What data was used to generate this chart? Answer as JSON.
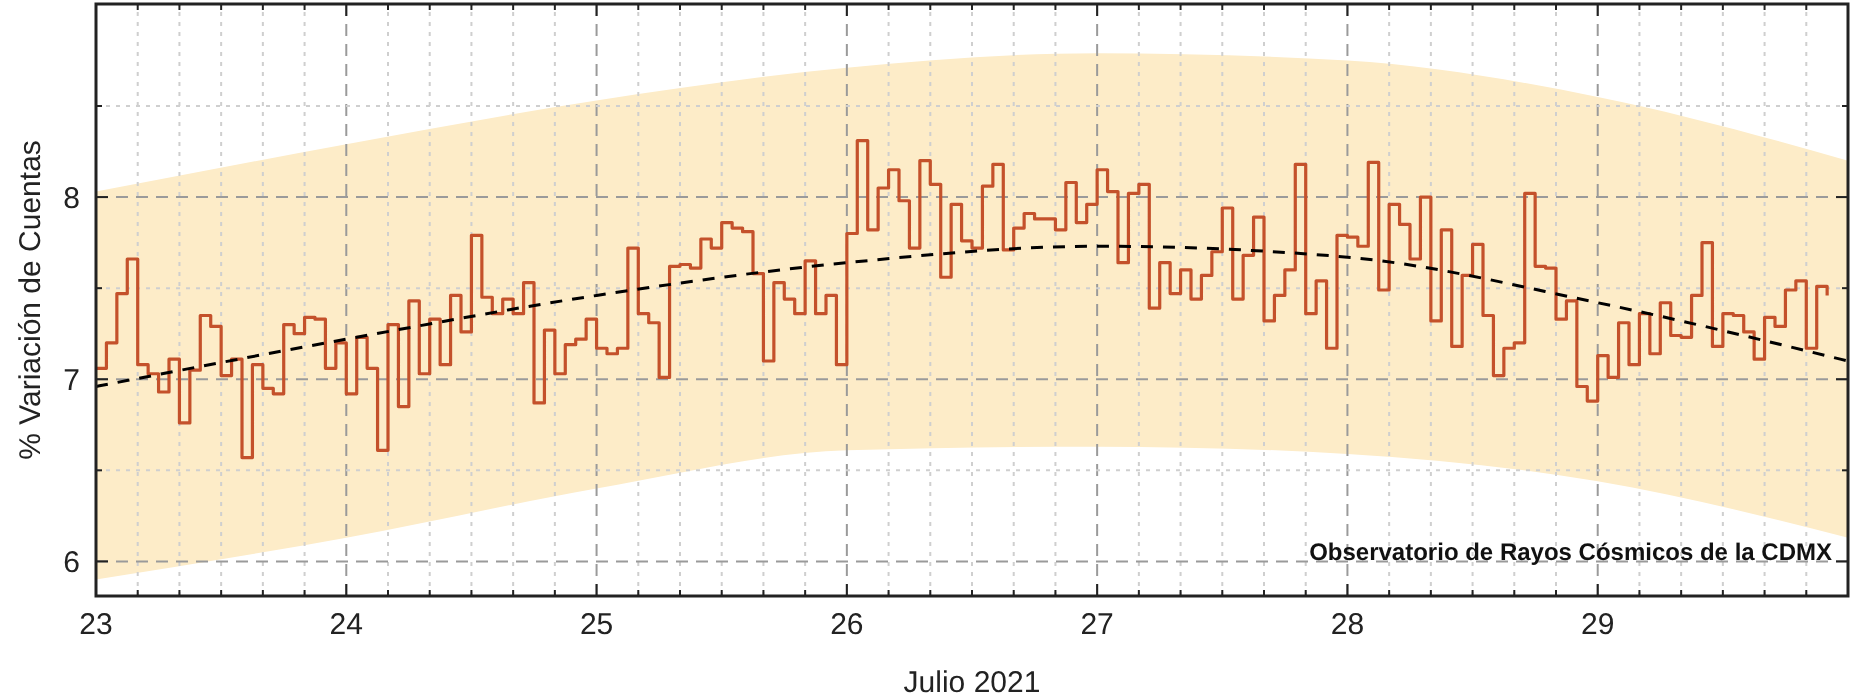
{
  "chart_data": {
    "type": "step",
    "xlabel": "Julio 2021",
    "ylabel": "% Variación de Cuentas",
    "annotations": [
      "Observatorio de Rayos Cósmicos de la CDMX"
    ],
    "xlim": [
      "2021-07-23",
      "2021-07-30"
    ],
    "ylim": [
      5.81,
      9.06
    ],
    "xticks": [
      {
        "value": "2021-07-23",
        "label": "23"
      },
      {
        "value": "2021-07-23T04:00",
        "label": null
      },
      {
        "value": "2021-07-23T08:00",
        "label": null
      },
      {
        "value": "2021-07-23T12:00",
        "label": null
      },
      {
        "value": "2021-07-23T16:00",
        "label": null
      },
      {
        "value": "2021-07-23T20:00",
        "label": null
      },
      {
        "value": "2021-07-24",
        "label": "24"
      },
      {
        "value": "2021-07-24T04:00",
        "label": null
      },
      {
        "value": "2021-07-24T08:00",
        "label": null
      },
      {
        "value": "2021-07-24T12:00",
        "label": null
      },
      {
        "value": "2021-07-24T16:00",
        "label": null
      },
      {
        "value": "2021-07-24T20:00",
        "label": null
      },
      {
        "value": "2021-07-25",
        "label": "25"
      },
      {
        "value": "2021-07-25T04:00",
        "label": null
      },
      {
        "value": "2021-07-25T08:00",
        "label": null
      },
      {
        "value": "2021-07-25T12:00",
        "label": null
      },
      {
        "value": "2021-07-25T16:00",
        "label": null
      },
      {
        "value": "2021-07-25T20:00",
        "label": null
      },
      {
        "value": "2021-07-26",
        "label": "26"
      },
      {
        "value": "2021-07-26T04:00",
        "label": null
      },
      {
        "value": "2021-07-26T08:00",
        "label": null
      },
      {
        "value": "2021-07-26T12:00",
        "label": null
      },
      {
        "value": "2021-07-26T16:00",
        "label": null
      },
      {
        "value": "2021-07-26T20:00",
        "label": null
      },
      {
        "value": "2021-07-27",
        "label": "27"
      },
      {
        "value": "2021-07-27T04:00",
        "label": null
      },
      {
        "value": "2021-07-27T08:00",
        "label": null
      },
      {
        "value": "2021-07-27T12:00",
        "label": null
      },
      {
        "value": "2021-07-27T16:00",
        "label": null
      },
      {
        "value": "2021-07-27T20:00",
        "label": null
      },
      {
        "value": "2021-07-28",
        "label": "28"
      },
      {
        "value": "2021-07-28T04:00",
        "label": null
      },
      {
        "value": "2021-07-28T08:00",
        "label": null
      },
      {
        "value": "2021-07-28T12:00",
        "label": null
      },
      {
        "value": "2021-07-28T16:00",
        "label": null
      },
      {
        "value": "2021-07-28T20:00",
        "label": null
      },
      {
        "value": "2021-07-29",
        "label": "29"
      },
      {
        "value": "2021-07-29T04:00",
        "label": null
      },
      {
        "value": "2021-07-29T08:00",
        "label": null
      },
      {
        "value": "2021-07-29T12:00",
        "label": null
      },
      {
        "value": "2021-07-29T16:00",
        "label": null
      },
      {
        "value": "2021-07-29T20:00",
        "label": null
      }
    ],
    "yticks": [
      6,
      {
        "value": 6.5,
        "label": null
      },
      7,
      {
        "value": 7.5,
        "label": null
      },
      8,
      {
        "value": 8.5,
        "label": null
      }
    ],
    "grid": true,
    "series": [
      {
        "color": "#c4512b",
        "x": [
          "2021-07-23T00:00",
          "2021-07-23T01:00",
          "2021-07-23T02:00",
          "2021-07-23T03:00",
          "2021-07-23T04:00",
          "2021-07-23T05:00",
          "2021-07-23T06:00",
          "2021-07-23T07:00",
          "2021-07-23T08:00",
          "2021-07-23T09:00",
          "2021-07-23T10:00",
          "2021-07-23T11:00",
          "2021-07-23T12:00",
          "2021-07-23T13:00",
          "2021-07-23T14:00",
          "2021-07-23T15:00",
          "2021-07-23T16:00",
          "2021-07-23T17:00",
          "2021-07-23T18:00",
          "2021-07-23T19:00",
          "2021-07-23T20:00",
          "2021-07-23T21:00",
          "2021-07-23T22:00",
          "2021-07-23T23:00",
          "2021-07-24T00:00",
          "2021-07-24T01:00",
          "2021-07-24T02:00",
          "2021-07-24T03:00",
          "2021-07-24T04:00",
          "2021-07-24T05:00",
          "2021-07-24T06:00",
          "2021-07-24T07:00",
          "2021-07-24T08:00",
          "2021-07-24T09:00",
          "2021-07-24T10:00",
          "2021-07-24T11:00",
          "2021-07-24T12:00",
          "2021-07-24T13:00",
          "2021-07-24T14:00",
          "2021-07-24T15:00",
          "2021-07-24T16:00",
          "2021-07-24T17:00",
          "2021-07-24T18:00",
          "2021-07-24T19:00",
          "2021-07-24T20:00",
          "2021-07-24T21:00",
          "2021-07-24T22:00",
          "2021-07-24T23:00",
          "2021-07-25T00:00",
          "2021-07-25T01:00",
          "2021-07-25T02:00",
          "2021-07-25T03:00",
          "2021-07-25T04:00",
          "2021-07-25T05:00",
          "2021-07-25T06:00",
          "2021-07-25T07:00",
          "2021-07-25T08:00",
          "2021-07-25T09:00",
          "2021-07-25T10:00",
          "2021-07-25T11:00",
          "2021-07-25T12:00",
          "2021-07-25T13:00",
          "2021-07-25T14:00",
          "2021-07-25T15:00",
          "2021-07-25T16:00",
          "2021-07-25T17:00",
          "2021-07-25T18:00",
          "2021-07-25T19:00",
          "2021-07-25T20:00",
          "2021-07-25T21:00",
          "2021-07-25T22:00",
          "2021-07-25T23:00",
          "2021-07-26T00:00",
          "2021-07-26T01:00",
          "2021-07-26T02:00",
          "2021-07-26T03:00",
          "2021-07-26T04:00",
          "2021-07-26T05:00",
          "2021-07-26T06:00",
          "2021-07-26T07:00",
          "2021-07-26T08:00",
          "2021-07-26T09:00",
          "2021-07-26T10:00",
          "2021-07-26T11:00",
          "2021-07-26T12:00",
          "2021-07-26T13:00",
          "2021-07-26T14:00",
          "2021-07-26T15:00",
          "2021-07-26T16:00",
          "2021-07-26T17:00",
          "2021-07-26T18:00",
          "2021-07-26T19:00",
          "2021-07-26T20:00",
          "2021-07-26T21:00",
          "2021-07-26T22:00",
          "2021-07-26T23:00",
          "2021-07-27T00:00",
          "2021-07-27T01:00",
          "2021-07-27T02:00",
          "2021-07-27T03:00",
          "2021-07-27T04:00",
          "2021-07-27T05:00",
          "2021-07-27T06:00",
          "2021-07-27T07:00",
          "2021-07-27T08:00",
          "2021-07-27T09:00",
          "2021-07-27T10:00",
          "2021-07-27T11:00",
          "2021-07-27T12:00",
          "2021-07-27T13:00",
          "2021-07-27T14:00",
          "2021-07-27T15:00",
          "2021-07-27T16:00",
          "2021-07-27T17:00",
          "2021-07-27T18:00",
          "2021-07-27T19:00",
          "2021-07-27T20:00",
          "2021-07-27T21:00",
          "2021-07-27T22:00",
          "2021-07-27T23:00",
          "2021-07-28T00:00",
          "2021-07-28T01:00",
          "2021-07-28T02:00",
          "2021-07-28T03:00",
          "2021-07-28T04:00",
          "2021-07-28T05:00",
          "2021-07-28T06:00",
          "2021-07-28T07:00",
          "2021-07-28T08:00",
          "2021-07-28T09:00",
          "2021-07-28T10:00",
          "2021-07-28T11:00",
          "2021-07-28T12:00",
          "2021-07-28T13:00",
          "2021-07-28T14:00",
          "2021-07-28T15:00",
          "2021-07-28T16:00",
          "2021-07-28T17:00",
          "2021-07-28T18:00",
          "2021-07-28T19:00",
          "2021-07-28T20:00",
          "2021-07-28T21:00",
          "2021-07-28T22:00",
          "2021-07-28T23:00",
          "2021-07-29T00:00",
          "2021-07-29T01:00",
          "2021-07-29T02:00",
          "2021-07-29T03:00",
          "2021-07-29T04:00",
          "2021-07-29T05:00",
          "2021-07-29T06:00",
          "2021-07-29T07:00",
          "2021-07-29T08:00",
          "2021-07-29T09:00",
          "2021-07-29T10:00",
          "2021-07-29T11:00",
          "2021-07-29T12:00",
          "2021-07-29T13:00",
          "2021-07-29T14:00",
          "2021-07-29T15:00",
          "2021-07-29T16:00",
          "2021-07-29T17:00",
          "2021-07-29T18:00",
          "2021-07-29T19:00",
          "2021-07-29T20:00",
          "2021-07-29T21:00",
          "2021-07-29T22:00"
        ],
        "values": [
          7.06,
          7.2,
          7.47,
          7.66,
          7.08,
          7.03,
          6.93,
          7.11,
          6.76,
          7.05,
          7.35,
          7.29,
          7.02,
          7.11,
          6.57,
          7.08,
          6.95,
          6.92,
          7.3,
          7.25,
          7.34,
          7.33,
          7.06,
          7.2,
          6.92,
          7.23,
          7.06,
          6.61,
          7.3,
          6.85,
          7.43,
          7.03,
          7.33,
          7.08,
          7.46,
          7.26,
          7.79,
          7.45,
          7.36,
          7.44,
          7.36,
          7.53,
          6.87,
          7.27,
          7.03,
          7.19,
          7.22,
          7.33,
          7.17,
          7.14,
          7.17,
          7.72,
          7.36,
          7.31,
          7.01,
          7.62,
          7.63,
          7.61,
          7.77,
          7.72,
          7.86,
          7.83,
          7.81,
          7.58,
          7.1,
          7.53,
          7.44,
          7.36,
          7.65,
          7.36,
          7.46,
          7.08,
          7.8,
          8.31,
          7.82,
          8.05,
          8.15,
          7.98,
          7.72,
          8.2,
          8.07,
          7.56,
          7.96,
          7.76,
          7.72,
          8.06,
          8.18,
          7.71,
          7.83,
          7.91,
          7.88,
          7.88,
          7.82,
          8.08,
          7.86,
          7.96,
          8.15,
          8.03,
          7.64,
          8.02,
          8.07,
          7.39,
          7.64,
          7.47,
          7.6,
          7.44,
          7.57,
          7.7,
          7.94,
          7.44,
          7.68,
          7.89,
          7.32,
          7.46,
          7.6,
          8.18,
          7.36,
          7.54,
          7.17,
          7.79,
          7.78,
          7.73,
          8.19,
          7.49,
          7.96,
          7.85,
          7.66,
          8.0,
          7.32,
          7.82,
          7.18,
          7.57,
          7.74,
          7.35,
          7.02,
          7.17,
          7.2,
          8.02,
          7.62,
          7.61,
          7.33,
          7.43,
          6.96,
          6.88,
          7.13,
          7.01,
          7.31,
          7.08,
          7.36,
          7.14,
          7.42,
          7.24,
          7.23,
          7.46,
          7.75,
          7.18,
          7.36,
          7.35,
          7.26,
          7.11,
          7.34,
          7.29,
          7.49,
          7.54,
          7.17,
          7.51,
          7.46
        ]
      },
      {
        "type": "line",
        "color": "#000000",
        "line_style": "dashed",
        "x": [
          "2021-07-23",
          "2021-07-24",
          "2021-07-25",
          "2021-07-26",
          "2021-07-27",
          "2021-07-28",
          "2021-07-29",
          "2021-07-30"
        ],
        "values": [
          6.96,
          7.22,
          7.46,
          7.64,
          7.73,
          7.67,
          7.42,
          7.1
        ],
        "lower": [
          5.9,
          6.13,
          6.4,
          6.61,
          6.63,
          6.59,
          6.44,
          6.13
        ],
        "upper": [
          8.03,
          8.29,
          8.53,
          8.71,
          8.79,
          8.75,
          8.55,
          8.2
        ]
      }
    ]
  }
}
